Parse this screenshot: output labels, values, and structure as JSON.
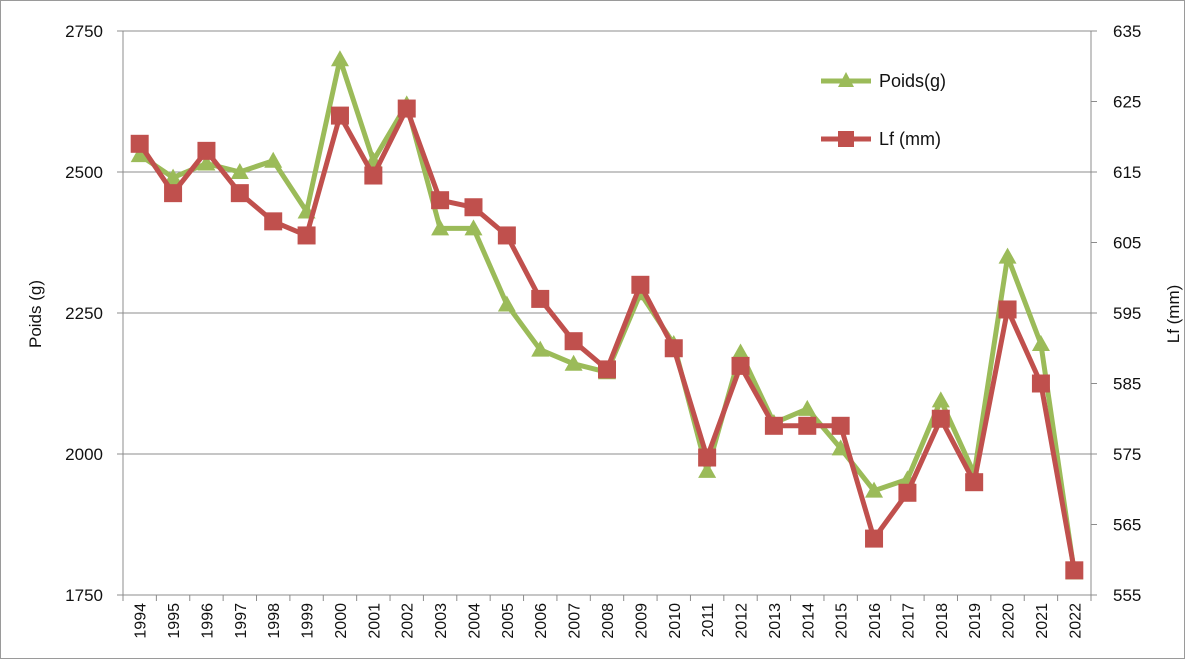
{
  "chart_data": {
    "type": "line",
    "title": "",
    "x": [
      "1994",
      "1995",
      "1996",
      "1997",
      "1998",
      "1999",
      "2000",
      "2001",
      "2002",
      "2003",
      "2004",
      "2005",
      "2006",
      "2007",
      "2008",
      "2009",
      "2010",
      "2011",
      "2012",
      "2013",
      "2014",
      "2015",
      "2016",
      "2017",
      "2018",
      "2019",
      "2020",
      "2021",
      "2022"
    ],
    "xlabel": "",
    "ylabel_left": "Poids (g)",
    "ylabel_right": "Lf (mm)",
    "ylim_left": [
      1750,
      2750
    ],
    "ylim_right": [
      555,
      635
    ],
    "yticks_left": [
      "1750",
      "2000",
      "2250",
      "2500",
      "2750"
    ],
    "yticks_right": [
      "555",
      "565",
      "575",
      "585",
      "595",
      "605",
      "615",
      "625",
      "635"
    ],
    "grid": "horizontal",
    "legend_position": "top-right",
    "series": [
      {
        "name": "Poids(g)",
        "axis": "left",
        "marker": "triangle",
        "color": "#9BBB59",
        "values": [
          2530,
          2490,
          2515,
          2500,
          2520,
          2430,
          2700,
          2520,
          2620,
          2400,
          2400,
          2265,
          2185,
          2160,
          2145,
          2285,
          2195,
          1970,
          2180,
          2055,
          2080,
          2010,
          1935,
          1955,
          2095,
          1965,
          2350,
          2195,
          1790
        ]
      },
      {
        "name": "Lf (mm)",
        "axis": "right",
        "marker": "square",
        "color": "#C0504D",
        "values": [
          619,
          612,
          618,
          612,
          608,
          606,
          623,
          614.5,
          624,
          611,
          610,
          606,
          597,
          591,
          587,
          599,
          590,
          574.5,
          587.5,
          579,
          579,
          579,
          563,
          569.5,
          580,
          571,
          595.5,
          585,
          558.5
        ]
      }
    ]
  }
}
